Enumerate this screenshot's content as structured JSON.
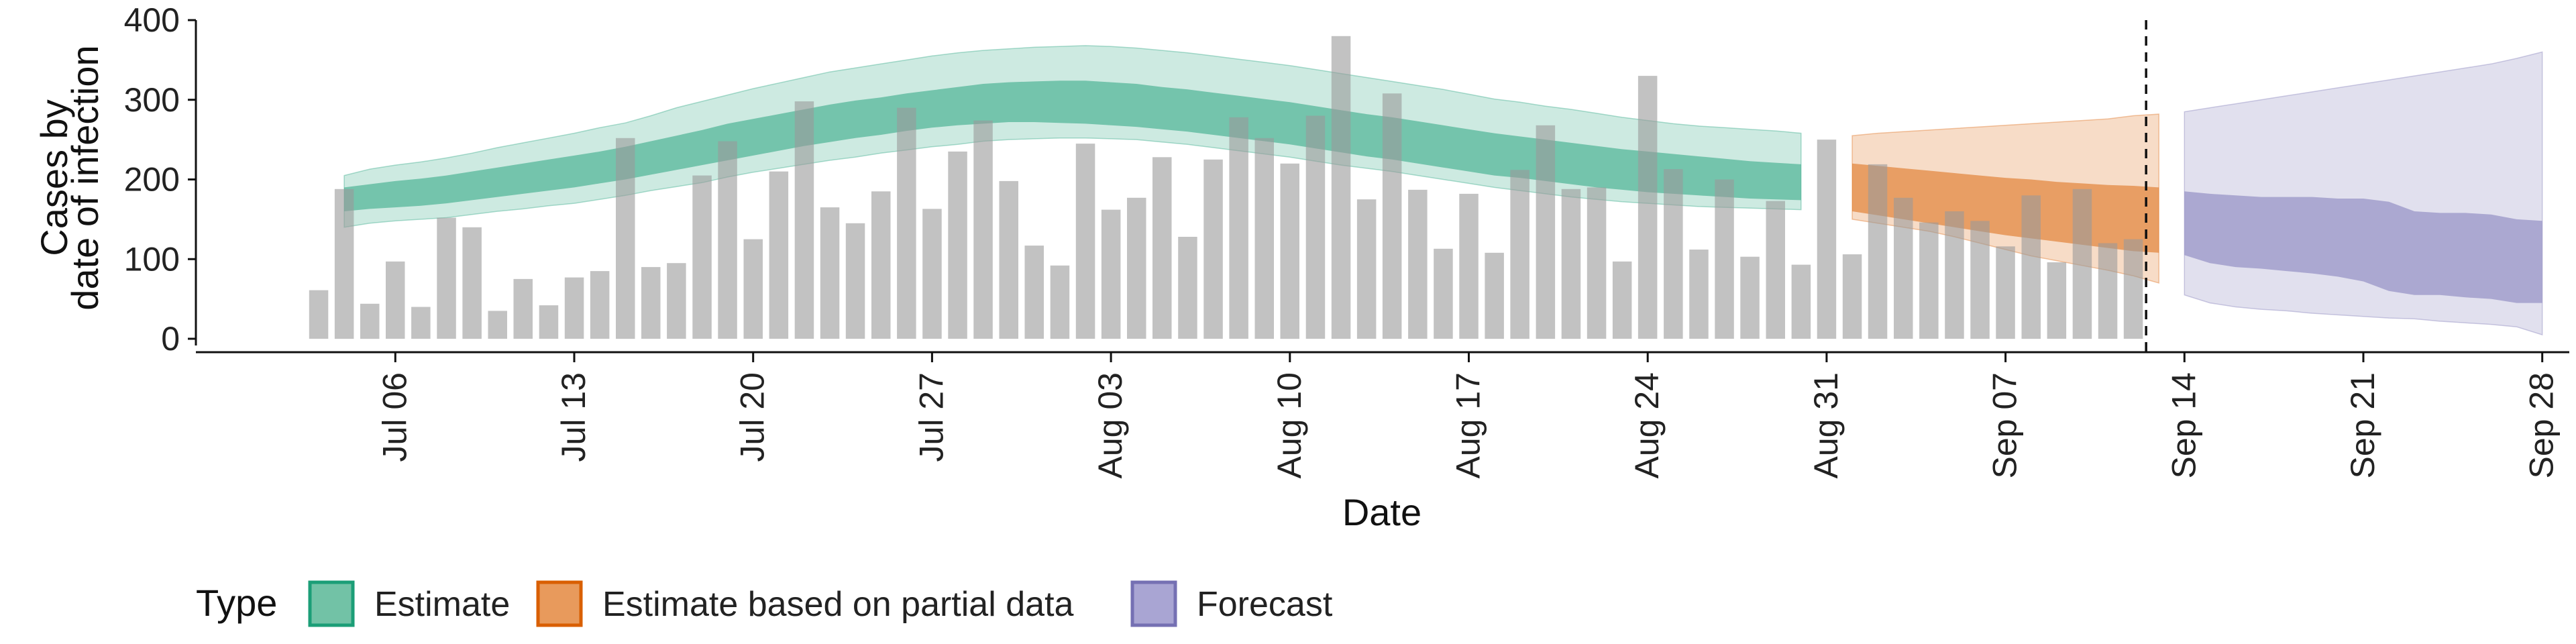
{
  "chart_data": {
    "type": "bar",
    "title": "",
    "xlabel": "Date",
    "ylabel_lines": [
      "Cases by",
      "date of infection"
    ],
    "ylim": [
      0,
      400
    ],
    "yticks": [
      "0",
      "100",
      "200",
      "300",
      "400"
    ],
    "x_start_date": "2020-07-03",
    "x_tick_labels": [
      "Jul 06",
      "Jul 13",
      "Jul 20",
      "Jul 27",
      "Aug 03",
      "Aug 10",
      "Aug 17",
      "Aug 24",
      "Aug 31",
      "Sep 07",
      "Sep 14",
      "Sep 21",
      "Sep 28"
    ],
    "bars": [
      61,
      188,
      44,
      97,
      40,
      152,
      140,
      35,
      75,
      42,
      77,
      85,
      252,
      90,
      95,
      205,
      248,
      125,
      210,
      298,
      165,
      145,
      185,
      290,
      163,
      235,
      274,
      198,
      117,
      92,
      245,
      162,
      177,
      228,
      128,
      225,
      278,
      252,
      220,
      280,
      380,
      175,
      308,
      187,
      113,
      182,
      108,
      212,
      268,
      188,
      190,
      97,
      330,
      213,
      112,
      200,
      103,
      173,
      93,
      250,
      106,
      219,
      177,
      146,
      160,
      148,
      116,
      180,
      96,
      188,
      120,
      125
    ],
    "vline_date": "2020-09-13",
    "series": [
      {
        "name": "Estimate",
        "color": "#1b9e77",
        "day_from": 1,
        "day_to": 58,
        "outer": {
          "low": [
            140,
            145,
            148,
            150,
            152,
            156,
            160,
            163,
            167,
            170,
            175,
            180,
            186,
            191,
            196,
            203,
            209,
            214,
            219,
            224,
            228,
            233,
            237,
            241,
            244,
            248,
            250,
            251,
            252,
            252,
            251,
            250,
            247,
            244,
            240,
            236,
            232,
            228,
            223,
            218,
            214,
            210,
            205,
            200,
            195,
            190,
            186,
            182,
            178,
            175,
            172,
            170,
            168,
            166,
            165,
            164,
            163,
            162
          ],
          "high": [
            205,
            213,
            218,
            222,
            227,
            233,
            240,
            246,
            252,
            258,
            265,
            271,
            280,
            290,
            298,
            306,
            314,
            321,
            328,
            335,
            340,
            345,
            350,
            355,
            359,
            362,
            364,
            366,
            367,
            368,
            367,
            365,
            362,
            359,
            355,
            351,
            347,
            343,
            338,
            333,
            328,
            323,
            318,
            313,
            307,
            301,
            297,
            292,
            288,
            283,
            278,
            274,
            270,
            267,
            265,
            263,
            261,
            258
          ]
        },
        "inner": {
          "low": [
            160,
            163,
            165,
            167,
            170,
            174,
            178,
            182,
            186,
            190,
            195,
            200,
            206,
            212,
            218,
            224,
            230,
            236,
            242,
            247,
            252,
            256,
            261,
            265,
            268,
            270,
            272,
            272,
            271,
            270,
            268,
            266,
            263,
            260,
            256,
            252,
            248,
            244,
            239,
            234,
            229,
            225,
            220,
            215,
            210,
            205,
            202,
            198,
            194,
            190,
            187,
            184,
            182,
            180,
            178,
            176,
            175,
            174
          ],
          "high": [
            190,
            194,
            198,
            201,
            205,
            210,
            215,
            220,
            225,
            230,
            235,
            241,
            248,
            255,
            262,
            270,
            276,
            282,
            288,
            294,
            299,
            303,
            308,
            312,
            316,
            320,
            322,
            323,
            324,
            324,
            322,
            320,
            316,
            313,
            309,
            305,
            301,
            297,
            292,
            287,
            282,
            278,
            273,
            268,
            263,
            258,
            254,
            250,
            246,
            242,
            238,
            235,
            232,
            229,
            226,
            223,
            221,
            219
          ]
        }
      },
      {
        "name": "Estimate based on partial data",
        "color": "#d95f02",
        "day_from": 60,
        "day_to": 72,
        "outer": {
          "low": [
            150,
            145,
            140,
            135,
            128,
            120,
            112,
            104,
            98,
            92,
            86,
            79,
            70
          ],
          "high": [
            255,
            258,
            260,
            262,
            264,
            266,
            268,
            270,
            272,
            274,
            276,
            280,
            282
          ]
        },
        "inner": {
          "low": [
            160,
            155,
            150,
            145,
            140,
            135,
            130,
            126,
            122,
            118,
            114,
            110,
            108
          ],
          "high": [
            220,
            217,
            214,
            211,
            208,
            205,
            202,
            200,
            197,
            195,
            193,
            192,
            190
          ]
        }
      },
      {
        "name": "Forecast",
        "color": "#7570b3",
        "day_from": 73,
        "day_to": 87,
        "outer": {
          "low": [
            55,
            45,
            40,
            37,
            35,
            32,
            30,
            28,
            26,
            25,
            22,
            20,
            18,
            15,
            5
          ],
          "high": [
            285,
            290,
            295,
            300,
            305,
            310,
            315,
            320,
            325,
            330,
            335,
            340,
            345,
            352,
            360
          ]
        },
        "inner": {
          "low": [
            105,
            95,
            90,
            88,
            85,
            82,
            78,
            72,
            60,
            55,
            55,
            52,
            50,
            45,
            45
          ],
          "high": [
            185,
            182,
            180,
            178,
            178,
            178,
            176,
            176,
            172,
            160,
            158,
            158,
            156,
            150,
            148
          ]
        }
      }
    ],
    "legend": {
      "placement": "bottom-left",
      "title": "Type",
      "items": [
        {
          "label": "Estimate",
          "fill": "#72c2a6",
          "stroke": "#1b9e77"
        },
        {
          "label": "Estimate based on partial data",
          "fill": "#e89a5c",
          "stroke": "#d95f02"
        },
        {
          "label": "Forecast",
          "fill": "#a9a5d3",
          "stroke": "#7570b3"
        }
      ]
    }
  }
}
